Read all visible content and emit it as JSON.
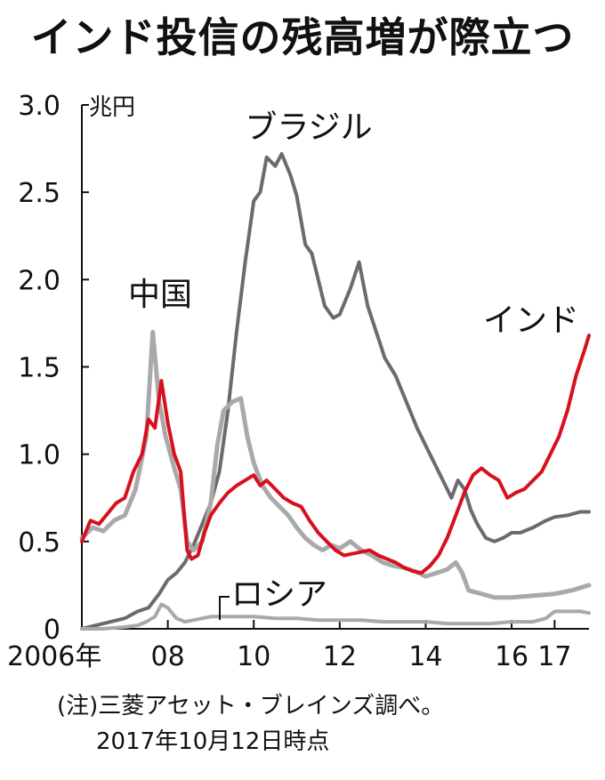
{
  "chart_data": {
    "type": "line",
    "title": "インド投信の残高増が際立つ",
    "y_unit": "兆円",
    "ylim": [
      0,
      3.0
    ],
    "y_ticks": [
      "0",
      "0.5",
      "1.0",
      "1.5",
      "2.0",
      "2.5",
      "3.0"
    ],
    "y_tick_values": [
      0,
      0.5,
      1.0,
      1.5,
      2.0,
      2.5,
      3.0
    ],
    "xlim": [
      2006.0,
      2017.8
    ],
    "x_ticks": [
      "2006年",
      "08",
      "10",
      "12",
      "14",
      "16",
      "17"
    ],
    "x_tick_values": [
      2006.0,
      2008.0,
      2010.0,
      2012.0,
      2014.0,
      2016.0,
      2017.0
    ],
    "grid": false,
    "legend": "inline labels",
    "series": [
      {
        "name": "ブラジル",
        "color": "#6b6b6b",
        "x": [
          2006.0,
          2006.5,
          2007.0,
          2007.3,
          2007.55,
          2007.8,
          2008.0,
          2008.2,
          2008.4,
          2008.6,
          2008.8,
          2009.0,
          2009.2,
          2009.4,
          2009.6,
          2009.8,
          2010.0,
          2010.15,
          2010.3,
          2010.5,
          2010.65,
          2010.85,
          2011.0,
          2011.2,
          2011.35,
          2011.5,
          2011.65,
          2011.85,
          2012.0,
          2012.25,
          2012.45,
          2012.65,
          2012.85,
          2013.05,
          2013.3,
          2013.55,
          2013.8,
          2014.0,
          2014.2,
          2014.4,
          2014.6,
          2014.75,
          2014.9,
          2015.05,
          2015.2,
          2015.4,
          2015.6,
          2015.8,
          2016.0,
          2016.2,
          2016.5,
          2016.8,
          2017.0,
          2017.3,
          2017.6,
          2017.8
        ],
        "values": [
          0.0,
          0.03,
          0.06,
          0.1,
          0.12,
          0.2,
          0.28,
          0.32,
          0.38,
          0.48,
          0.6,
          0.72,
          0.9,
          1.25,
          1.7,
          2.1,
          2.45,
          2.5,
          2.7,
          2.65,
          2.72,
          2.6,
          2.48,
          2.2,
          2.15,
          2.0,
          1.85,
          1.78,
          1.8,
          1.95,
          2.1,
          1.85,
          1.7,
          1.55,
          1.45,
          1.3,
          1.15,
          1.05,
          0.95,
          0.85,
          0.75,
          0.85,
          0.8,
          0.68,
          0.6,
          0.52,
          0.5,
          0.52,
          0.55,
          0.55,
          0.58,
          0.62,
          0.64,
          0.65,
          0.67,
          0.67
        ]
      },
      {
        "name": "中国",
        "color": "#a9a9a9",
        "x": [
          2006.0,
          2006.25,
          2006.5,
          2006.75,
          2007.0,
          2007.25,
          2007.5,
          2007.65,
          2007.8,
          2007.95,
          2008.15,
          2008.3,
          2008.45,
          2008.6,
          2008.8,
          2009.0,
          2009.15,
          2009.3,
          2009.5,
          2009.7,
          2009.85,
          2010.0,
          2010.2,
          2010.4,
          2010.6,
          2010.8,
          2011.0,
          2011.2,
          2011.4,
          2011.6,
          2011.8,
          2012.0,
          2012.25,
          2012.5,
          2012.75,
          2013.0,
          2013.25,
          2013.5,
          2013.75,
          2014.0,
          2014.25,
          2014.5,
          2014.7,
          2014.85,
          2015.0,
          2015.3,
          2015.6,
          2016.0,
          2016.5,
          2017.0,
          2017.4,
          2017.8
        ],
        "values": [
          0.52,
          0.58,
          0.56,
          0.62,
          0.65,
          0.8,
          1.1,
          1.7,
          1.3,
          1.1,
          0.92,
          0.8,
          0.5,
          0.45,
          0.5,
          0.72,
          1.05,
          1.25,
          1.3,
          1.32,
          1.1,
          0.95,
          0.82,
          0.75,
          0.7,
          0.65,
          0.58,
          0.52,
          0.48,
          0.45,
          0.48,
          0.46,
          0.5,
          0.45,
          0.42,
          0.38,
          0.36,
          0.35,
          0.33,
          0.3,
          0.32,
          0.34,
          0.38,
          0.32,
          0.22,
          0.2,
          0.18,
          0.18,
          0.19,
          0.2,
          0.22,
          0.25
        ]
      },
      {
        "name": "インド",
        "color": "#d8101d",
        "x": [
          2006.0,
          2006.2,
          2006.4,
          2006.6,
          2006.8,
          2007.0,
          2007.2,
          2007.4,
          2007.55,
          2007.7,
          2007.85,
          2008.0,
          2008.15,
          2008.3,
          2008.45,
          2008.55,
          2008.7,
          2008.85,
          2009.0,
          2009.2,
          2009.4,
          2009.6,
          2009.8,
          2010.0,
          2010.15,
          2010.3,
          2010.5,
          2010.7,
          2010.9,
          2011.1,
          2011.3,
          2011.5,
          2011.7,
          2011.9,
          2012.1,
          2012.3,
          2012.5,
          2012.7,
          2012.9,
          2013.1,
          2013.3,
          2013.5,
          2013.7,
          2013.9,
          2014.1,
          2014.3,
          2014.5,
          2014.7,
          2014.9,
          2015.1,
          2015.3,
          2015.5,
          2015.7,
          2015.9,
          2016.1,
          2016.3,
          2016.5,
          2016.7,
          2016.9,
          2017.1,
          2017.3,
          2017.5,
          2017.7,
          2017.8
        ],
        "values": [
          0.5,
          0.62,
          0.6,
          0.66,
          0.72,
          0.75,
          0.9,
          1.0,
          1.2,
          1.15,
          1.42,
          1.18,
          1.0,
          0.9,
          0.45,
          0.4,
          0.42,
          0.55,
          0.65,
          0.72,
          0.78,
          0.82,
          0.85,
          0.88,
          0.82,
          0.85,
          0.8,
          0.75,
          0.72,
          0.7,
          0.62,
          0.55,
          0.5,
          0.45,
          0.42,
          0.43,
          0.44,
          0.45,
          0.42,
          0.4,
          0.38,
          0.35,
          0.33,
          0.32,
          0.36,
          0.42,
          0.52,
          0.65,
          0.78,
          0.88,
          0.92,
          0.88,
          0.85,
          0.75,
          0.78,
          0.8,
          0.85,
          0.9,
          1.0,
          1.1,
          1.25,
          1.45,
          1.6,
          1.68
        ]
      },
      {
        "name": "ロシア",
        "color": "#a9a9a9",
        "x": [
          2006.0,
          2006.5,
          2007.0,
          2007.3,
          2007.5,
          2007.7,
          2007.85,
          2008.0,
          2008.2,
          2008.4,
          2008.6,
          2008.8,
          2009.0,
          2009.5,
          2010.0,
          2010.5,
          2011.0,
          2011.5,
          2012.0,
          2012.5,
          2013.0,
          2013.5,
          2014.0,
          2014.5,
          2015.0,
          2015.5,
          2016.0,
          2016.5,
          2016.8,
          2017.0,
          2017.3,
          2017.6,
          2017.8
        ],
        "values": [
          0.0,
          0.0,
          0.01,
          0.02,
          0.04,
          0.07,
          0.14,
          0.12,
          0.06,
          0.04,
          0.05,
          0.06,
          0.07,
          0.07,
          0.07,
          0.06,
          0.06,
          0.05,
          0.05,
          0.05,
          0.04,
          0.04,
          0.04,
          0.03,
          0.03,
          0.03,
          0.04,
          0.04,
          0.06,
          0.1,
          0.1,
          0.1,
          0.09
        ]
      }
    ],
    "notes": [
      "(注)三菱アセット・ブレインズ調べ。",
      "2017年10月12日時点"
    ]
  }
}
